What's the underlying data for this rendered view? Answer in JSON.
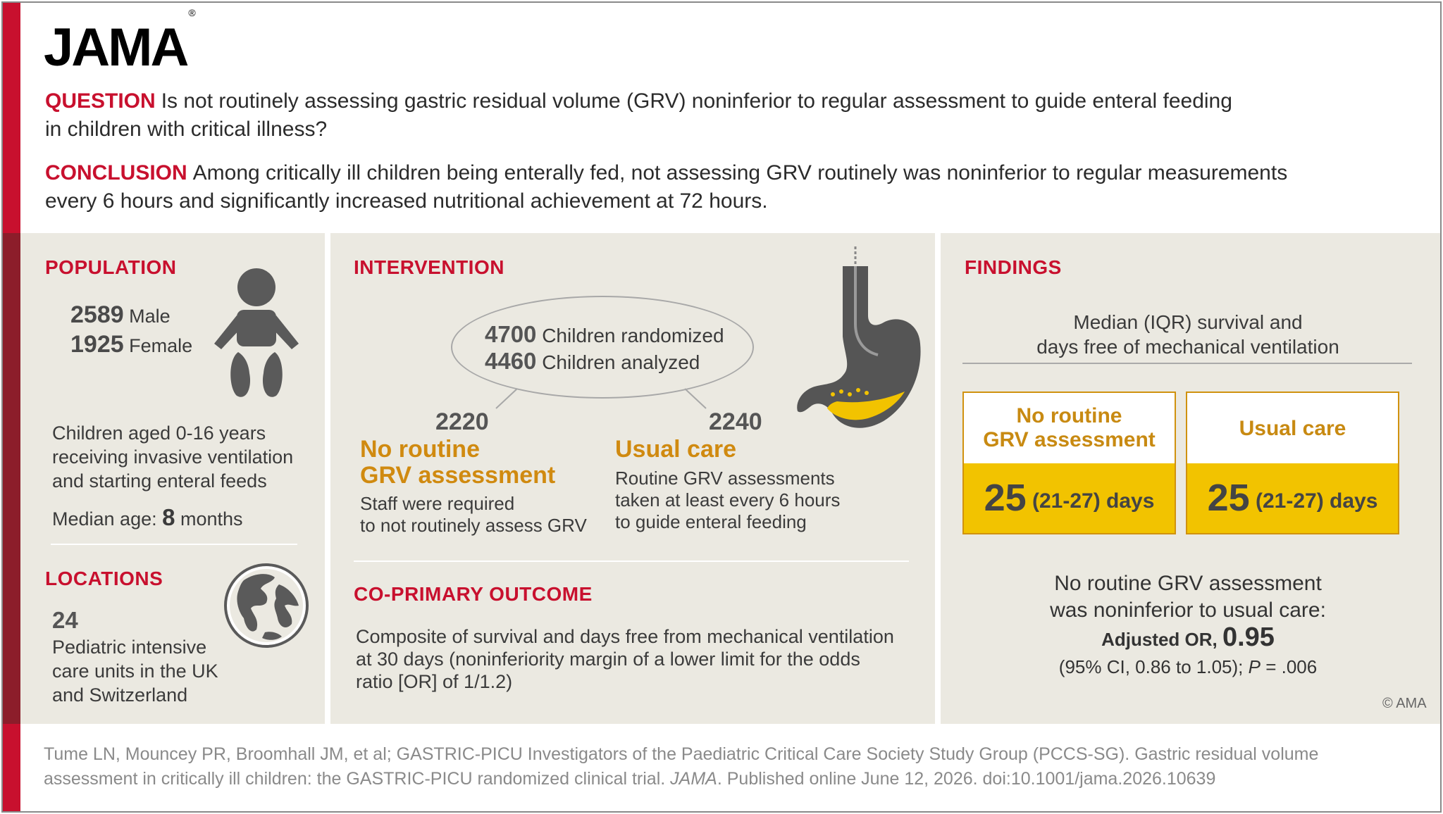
{
  "logo": {
    "text": "JAMA",
    "mark": "®"
  },
  "question": {
    "label": "QUESTION",
    "text": "Is not routinely assessing gastric residual volume (GRV) noninferior to regular assessment to guide enteral feeding",
    "text2": "in children with critical illness?"
  },
  "conclusion": {
    "label": "CONCLUSION",
    "text": "Among critically ill children being enterally fed, not assessing GRV routinely was noninferior to regular measurements",
    "text2": "every 6 hours and significantly increased nutritional achievement at 72 hours."
  },
  "population": {
    "heading": "POPULATION",
    "male_count": "2589",
    "male_label": "Male",
    "female_count": "1925",
    "female_label": "Female",
    "desc": [
      "Children aged 0-16 years",
      "receiving invasive ventilation",
      "and starting enteral feeds"
    ],
    "median_label": "Median age:",
    "median_value": "8",
    "median_unit": "months",
    "icon": "baby-icon"
  },
  "locations": {
    "heading": "LOCATIONS",
    "count": "24",
    "desc": [
      "Pediatric intensive",
      "care units in the UK",
      "and Switzerland"
    ],
    "icon": "globe-icon"
  },
  "intervention": {
    "heading": "INTERVENTION",
    "randomized_count": "4700",
    "randomized_label": "Children randomized",
    "analyzed_count": "4460",
    "analyzed_label": "Children analyzed",
    "arm1": {
      "count": "2220",
      "title": [
        "No routine",
        "GRV assessment"
      ],
      "desc": [
        "Staff were required",
        "to not routinely assess GRV"
      ]
    },
    "arm2": {
      "count": "2240",
      "title": [
        "Usual care"
      ],
      "desc": [
        "Routine GRV assessments",
        "taken at least every 6 hours",
        "to guide enteral feeding"
      ]
    },
    "icon": "stomach-icon"
  },
  "outcome": {
    "heading": "CO-PRIMARY OUTCOME",
    "desc": [
      "Composite of survival and days free from mechanical ventilation",
      "at 30 days (noninferiority margin of a lower limit for the odds",
      "ratio [OR] of 1/1.2)"
    ]
  },
  "findings": {
    "heading": "FINDINGS",
    "subtitle": [
      "Median (IQR) survival and",
      "days free of mechanical ventilation"
    ],
    "box1": {
      "label": [
        "No routine",
        "GRV assessment"
      ],
      "value": "25",
      "range": "(21-27) days"
    },
    "box2": {
      "label": [
        "Usual care"
      ],
      "value": "25",
      "range": "(21-27) days"
    },
    "result": [
      "No routine GRV assessment",
      "was noninferior to usual care:"
    ],
    "or_label": "Adjusted OR,",
    "or_value": "0.95",
    "ci": "(95% CI, 0.86 to 1.05);",
    "p_label": "P",
    "p_value": "= .006"
  },
  "copyright": "© AMA",
  "citation": {
    "line1": "Tume LN, Mouncey PR, Broomhall JM, et al; GASTRIC-PICU Investigators of the Paediatric Critical Care Society Study Group (PCCS-SG). Gastric residual volume",
    "line2a": "assessment in critically ill children: the GASTRIC-PICU randomized clinical trial.",
    "journal": "JAMA",
    "line2b": ". Published online June 12, 2026. doi:10.1001/jama.2026.10639"
  },
  "colors": {
    "red": "#c8102e",
    "dark_red": "#8c1d2a",
    "gold": "#d08a10",
    "yellow": "#f2c300",
    "panel": "#ebe9e1"
  }
}
